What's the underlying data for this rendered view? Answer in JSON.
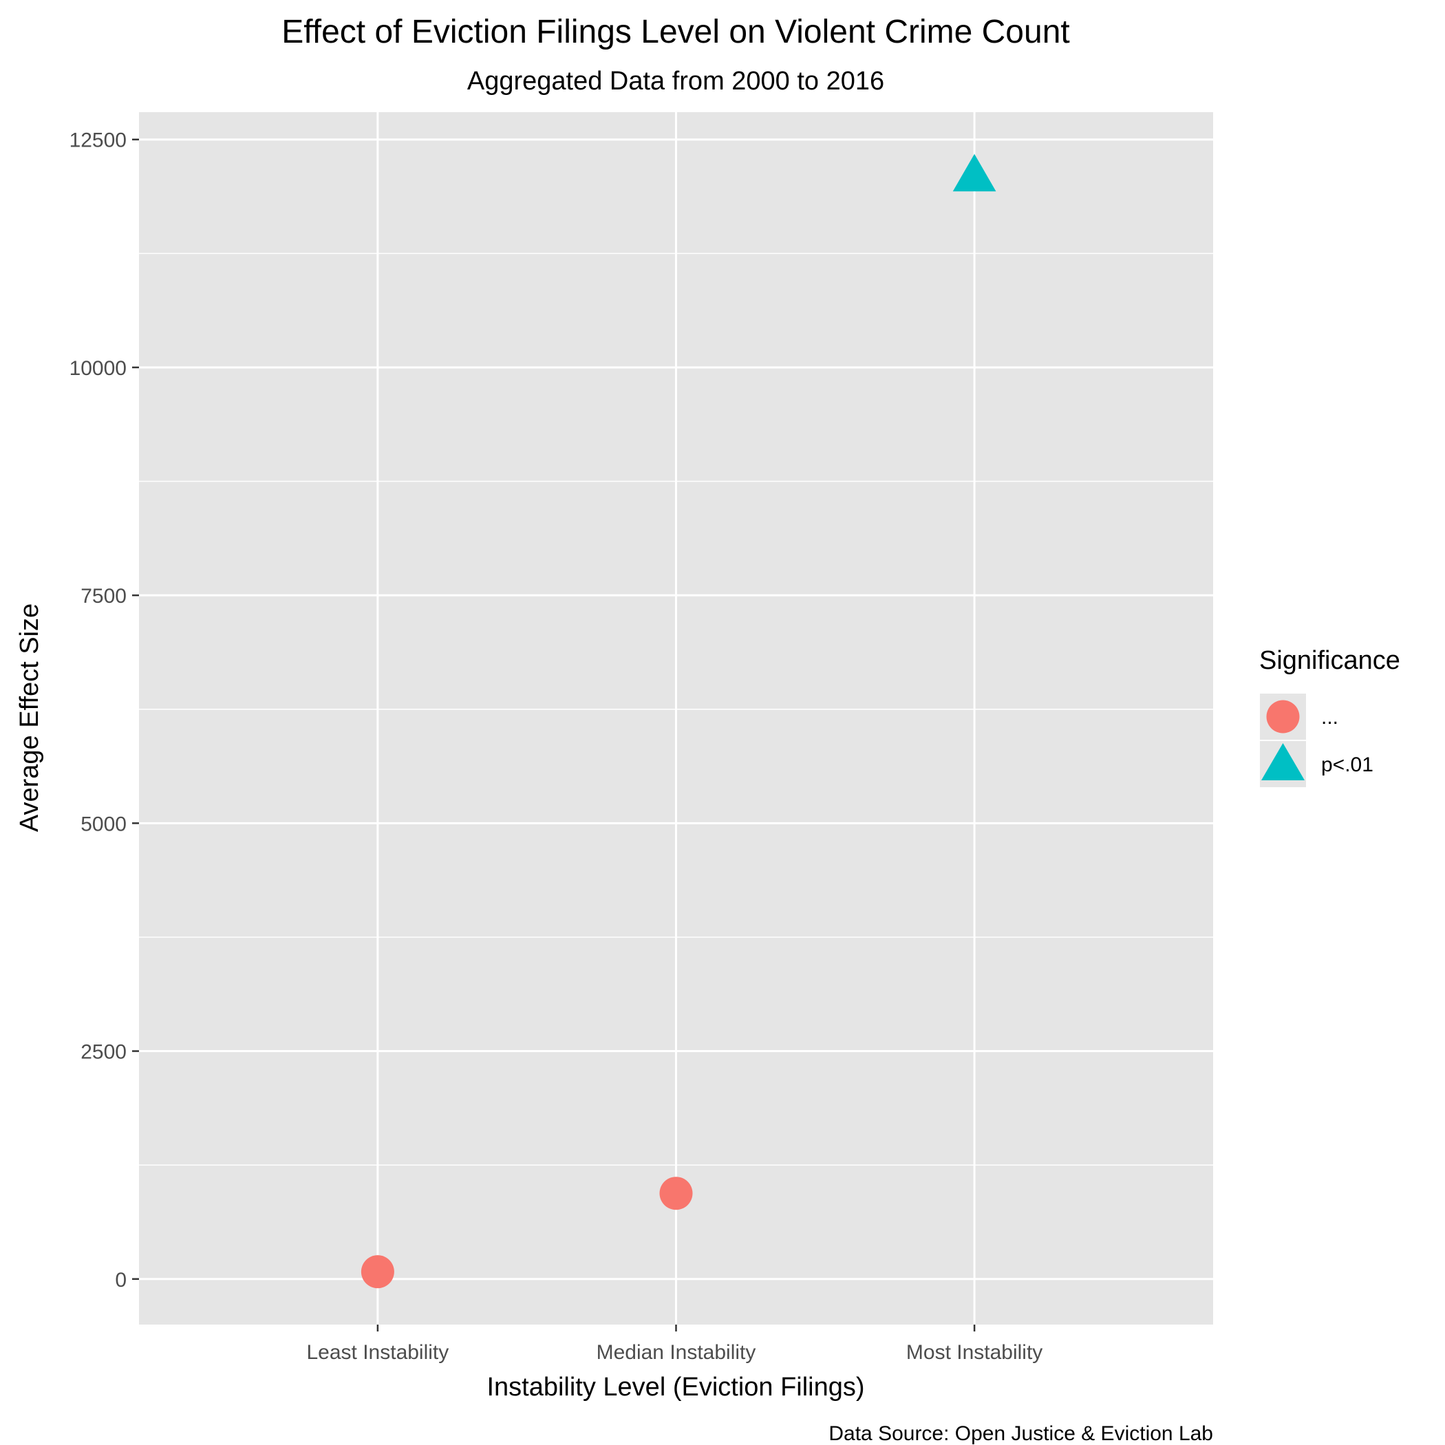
{
  "chart_data": {
    "type": "scatter",
    "title": "Effect of Eviction Filings Level on Violent Crime Count",
    "subtitle": "Aggregated Data from 2000 to 2016",
    "xlabel": "Instability Level (Eviction Filings)",
    "ylabel": "Average Effect Size",
    "caption": "Data Source: Open Justice & Eviction Lab",
    "categories": [
      "Least Instability",
      "Median Instability",
      "Most Instability"
    ],
    "yticks": [
      0,
      2500,
      5000,
      7500,
      10000,
      12500
    ],
    "ylim": [
      -500,
      12800
    ],
    "grid": true,
    "legend": {
      "title": "Significance",
      "position": "right",
      "entries": [
        {
          "label": "...",
          "shape": "circle",
          "color": "#F8766D"
        },
        {
          "label": "p<.01",
          "shape": "triangle",
          "color": "#00BFC4"
        }
      ]
    },
    "points": [
      {
        "category": "Least Instability",
        "value": 80,
        "significance": "..."
      },
      {
        "category": "Median Instability",
        "value": 940,
        "significance": "..."
      },
      {
        "category": "Most Instability",
        "value": 12100,
        "significance": "p<.01"
      }
    ]
  },
  "colors": {
    "panel_background": "#E5E5E5",
    "grid": "#FFFFFF",
    "insignificant": "#F8766D",
    "significant": "#00BFC4"
  }
}
